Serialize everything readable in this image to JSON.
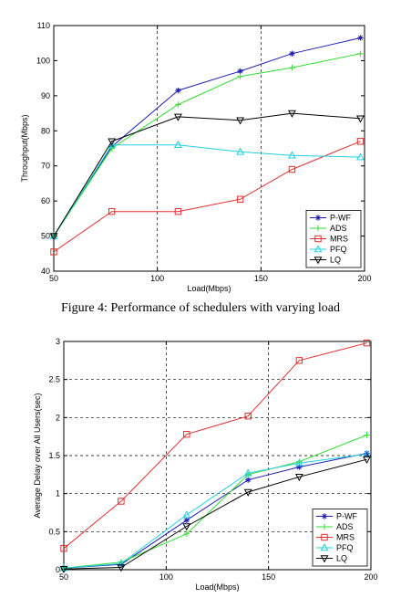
{
  "caption": "Figure 4: Performance of schedulers with varying load",
  "colors": {
    "P-WF": "#1f1fb4",
    "ADS": "#33dd33",
    "MRS": "#e03030",
    "PFQ": "#22d0e0",
    "LQ": "#000000"
  },
  "markers": {
    "P-WF": "star",
    "ADS": "plus",
    "MRS": "square",
    "PFQ": "triangle-up",
    "LQ": "triangle-down"
  },
  "chart_data": [
    {
      "type": "line",
      "title": "",
      "xlabel": "Load(Mbps)",
      "ylabel": "Throughput(Mbps)",
      "xlim": [
        50,
        200
      ],
      "ylim": [
        40,
        110
      ],
      "xticks": [
        50,
        100,
        150,
        200
      ],
      "yticks": [
        40,
        50,
        60,
        70,
        80,
        90,
        100,
        110
      ],
      "grid": "x-dashed",
      "legend": "bottom-right",
      "series": [
        {
          "name": "P-WF",
          "x": [
            50,
            78,
            110,
            140,
            165,
            198
          ],
          "y": [
            50,
            75.5,
            91.5,
            97,
            102,
            106.5
          ]
        },
        {
          "name": "ADS",
          "x": [
            50,
            78,
            110,
            140,
            165,
            198
          ],
          "y": [
            50,
            75,
            87.5,
            95.5,
            98,
            102
          ]
        },
        {
          "name": "MRS",
          "x": [
            50,
            78,
            110,
            140,
            165,
            198
          ],
          "y": [
            45.5,
            57,
            57,
            60.5,
            69,
            77
          ]
        },
        {
          "name": "PFQ",
          "x": [
            50,
            78,
            110,
            140,
            165,
            198
          ],
          "y": [
            50,
            76,
            76,
            74,
            73,
            72.5
          ]
        },
        {
          "name": "LQ",
          "x": [
            50,
            78,
            110,
            140,
            165,
            198
          ],
          "y": [
            50,
            77,
            84,
            83,
            85,
            83.5
          ]
        }
      ]
    },
    {
      "type": "line",
      "title": "",
      "xlabel": "Load(Mbps)",
      "ylabel": "Average Delay over All Users(sec)",
      "xlim": [
        50,
        200
      ],
      "ylim": [
        0,
        3
      ],
      "xticks": [
        50,
        100,
        150,
        200
      ],
      "yticks": [
        0,
        0.5,
        1,
        1.5,
        2,
        2.5,
        3
      ],
      "grid": "both-dashed",
      "legend": "bottom-right",
      "series": [
        {
          "name": "P-WF",
          "x": [
            50,
            78,
            110,
            140,
            165,
            198
          ],
          "y": [
            0.02,
            0.07,
            0.65,
            1.18,
            1.35,
            1.53
          ]
        },
        {
          "name": "ADS",
          "x": [
            50,
            78,
            110,
            140,
            165,
            198
          ],
          "y": [
            0.02,
            0.1,
            0.47,
            1.25,
            1.42,
            1.77
          ]
        },
        {
          "name": "MRS",
          "x": [
            50,
            78,
            110,
            140,
            165,
            198
          ],
          "y": [
            0.28,
            0.9,
            1.78,
            2.02,
            2.75,
            2.98
          ]
        },
        {
          "name": "PFQ",
          "x": [
            50,
            78,
            110,
            140,
            165,
            198
          ],
          "y": [
            0.02,
            0.08,
            0.72,
            1.27,
            1.4,
            1.52
          ]
        },
        {
          "name": "LQ",
          "x": [
            50,
            78,
            110,
            140,
            165,
            198
          ],
          "y": [
            0.01,
            0.03,
            0.57,
            1.02,
            1.22,
            1.45
          ]
        }
      ]
    }
  ]
}
